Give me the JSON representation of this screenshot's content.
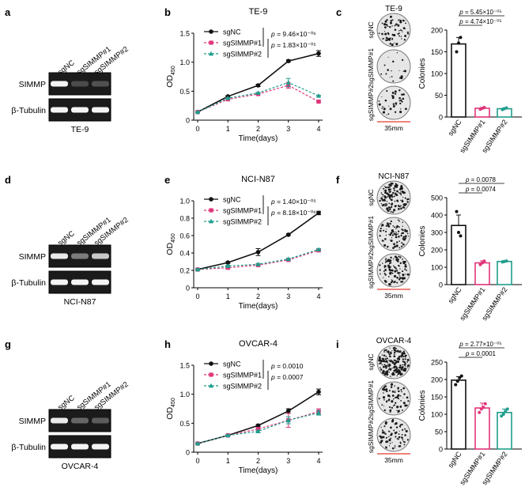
{
  "colors": {
    "sgNC": "#111111",
    "sgSIMMP1": "#e0357a",
    "sgSIMMP2": "#1f9d8c",
    "scale": "#e23b2e",
    "blot_bg": "#1b1b1b",
    "band": "#f4f4f4"
  },
  "common": {
    "xlabel": "Time(days)",
    "ylabel_main": "OD",
    "ylabel_sub": "450",
    "colonies_label": "Colonies",
    "scale_label": "35mm",
    "p_prefix": "p",
    "western_labels": [
      "sgNC",
      "sgSIMMP#1",
      "sgSIMMP#2"
    ],
    "blot_rows": [
      "SIMMP",
      "β-Tubulin"
    ]
  },
  "rows": [
    {
      "cell_line": "TE-9",
      "letters": [
        "a",
        "b",
        "c"
      ],
      "western": {
        "simmp_intensity": [
          1.0,
          0.22,
          0.25
        ],
        "tubulin_intensity": [
          1.0,
          1.0,
          1.0
        ]
      },
      "chart_data": {
        "type": "line",
        "title": "TE-9",
        "xlabel": "Time(days)",
        "ylabel": "OD450",
        "x": [
          0,
          1,
          2,
          3,
          4
        ],
        "ylim": [
          0,
          1.5
        ],
        "yticks": [
          "0",
          "0.5",
          "1.0",
          "1.5"
        ],
        "series": [
          {
            "name": "sgNC",
            "values": [
              0.14,
              0.41,
              0.6,
              1.02,
              1.15
            ],
            "errors": [
              0.01,
              0.01,
              0.02,
              0.02,
              0.05
            ]
          },
          {
            "name": "sgSIMMP#1",
            "values": [
              0.14,
              0.36,
              0.45,
              0.6,
              0.32
            ],
            "errors": [
              0.01,
              0.01,
              0.01,
              0.05,
              0.01
            ]
          },
          {
            "name": "sgSIMMP#2",
            "values": [
              0.14,
              0.38,
              0.47,
              0.65,
              0.42
            ],
            "errors": [
              0.01,
              0.01,
              0.01,
              0.07,
              0.01
            ]
          }
        ],
        "pvalues": [
          "= 9.46×10⁻⁰⁶",
          "= 1.83×10⁻⁰⁵"
        ]
      },
      "colony": {
        "dish_label": "TE-9",
        "dish_labels": [
          "sgNC",
          "sgSIMMP#1",
          "sgSIMMP#2"
        ],
        "densities": [
          70,
          18,
          40
        ],
        "chart_data": {
          "type": "bar",
          "categories": [
            "sgNC",
            "sgSIMMP#1",
            "sgSIMMP#2"
          ],
          "values": [
            168,
            20,
            19
          ],
          "errors": [
            15,
            2,
            2
          ],
          "points": [
            [
              150,
              170,
              183
            ],
            [
              18,
              20,
              22
            ],
            [
              17,
              19,
              21
            ]
          ],
          "ylabel": "Colonies",
          "ylim": [
            0,
            200
          ],
          "yticks": [
            "0",
            "50",
            "100",
            "150",
            "200"
          ],
          "pvalues": [
            "= 4.74×10⁻⁰⁵",
            "= 5.45×10⁻⁰⁵"
          ]
        }
      }
    },
    {
      "cell_line": "NCI-N87",
      "letters": [
        "d",
        "e",
        "f"
      ],
      "western": {
        "simmp_intensity": [
          0.95,
          0.45,
          0.8
        ],
        "tubulin_intensity": [
          1.0,
          1.0,
          1.0
        ]
      },
      "chart_data": {
        "type": "line",
        "title": "NCI-N87",
        "xlabel": "Time(days)",
        "ylabel": "OD450",
        "x": [
          0,
          1,
          2,
          3,
          4
        ],
        "ylim": [
          0,
          1.0
        ],
        "yticks": [
          "0",
          "0.2",
          "0.4",
          "0.6",
          "0.8",
          "1.0"
        ],
        "series": [
          {
            "name": "sgNC",
            "values": [
              0.21,
              0.29,
              0.41,
              0.61,
              0.86
            ],
            "errors": [
              0.01,
              0.01,
              0.04,
              0.01,
              0.02
            ]
          },
          {
            "name": "sgSIMMP#1",
            "values": [
              0.21,
              0.23,
              0.26,
              0.32,
              0.43
            ],
            "errors": [
              0.01,
              0.01,
              0.01,
              0.01,
              0.01
            ]
          },
          {
            "name": "sgSIMMP#2",
            "values": [
              0.21,
              0.25,
              0.27,
              0.33,
              0.44
            ],
            "errors": [
              0.01,
              0.01,
              0.01,
              0.01,
              0.01
            ]
          }
        ],
        "pvalues": [
          "= 1.40×10⁻⁰⁵",
          "= 8.18×10⁻⁰⁶"
        ]
      },
      "colony": {
        "dish_label": "NCI-N87",
        "dish_labels": [
          "sgNC",
          "sgSIMMP#1",
          "sgSIMMP#2"
        ],
        "densities": [
          150,
          90,
          95
        ],
        "chart_data": {
          "type": "bar",
          "categories": [
            "sgNC",
            "sgSIMMP#1",
            "sgSIMMP#2"
          ],
          "values": [
            340,
            125,
            133
          ],
          "errors": [
            60,
            12,
            5
          ],
          "points": [
            [
              420,
              300,
              280
            ],
            [
              115,
              125,
              135
            ],
            [
              130,
              133,
              136
            ]
          ],
          "ylabel": "Colonies",
          "ylim": [
            0,
            500
          ],
          "yticks": [
            "0",
            "100",
            "200",
            "300",
            "400",
            "500"
          ],
          "pvalues": [
            "= 0.0074",
            "= 0.0078"
          ]
        }
      }
    },
    {
      "cell_line": "OVCAR-4",
      "letters": [
        "g",
        "h",
        "i"
      ],
      "western": {
        "simmp_intensity": [
          0.95,
          0.35,
          0.3
        ],
        "tubulin_intensity": [
          1.0,
          1.0,
          1.0
        ]
      },
      "chart_data": {
        "type": "line",
        "title": "OVCAR-4",
        "xlabel": "Time(days)",
        "ylabel": "OD450",
        "x": [
          0,
          1,
          2,
          3,
          4
        ],
        "ylim": [
          0,
          1.5
        ],
        "yticks": [
          "0",
          "0.5",
          "1.0",
          "1.5"
        ],
        "series": [
          {
            "name": "sgNC",
            "values": [
              0.15,
              0.29,
              0.46,
              0.71,
              1.04
            ],
            "errors": [
              0.01,
              0.01,
              0.02,
              0.04,
              0.05
            ]
          },
          {
            "name": "sgSIMMP#1",
            "values": [
              0.15,
              0.29,
              0.4,
              0.55,
              0.7
            ],
            "errors": [
              0.01,
              0.01,
              0.02,
              0.12,
              0.05
            ]
          },
          {
            "name": "sgSIMMP#2",
            "values": [
              0.15,
              0.29,
              0.36,
              0.55,
              0.68
            ],
            "errors": [
              0.01,
              0.01,
              0.02,
              0.06,
              0.04
            ]
          }
        ],
        "pvalues": [
          "= 0.0010",
          "= 0.0007"
        ]
      },
      "colony": {
        "dish_label": "OVCAR-4",
        "dish_labels": [
          "sgNC",
          "sgSIMMP#1",
          "sgSIMMP#2"
        ],
        "densities": [
          200,
          70,
          80
        ],
        "chart_data": {
          "type": "bar",
          "categories": [
            "sgNC",
            "sgSIMMP#1",
            "sgSIMMP#2"
          ],
          "values": [
            198,
            118,
            105
          ],
          "errors": [
            10,
            14,
            10
          ],
          "points": [
            [
              185,
              195,
              205,
              210
            ],
            [
              105,
              115,
              120,
              130
            ],
            [
              95,
              100,
              108,
              115
            ]
          ],
          "ylabel": "Colonies",
          "ylim": [
            0,
            250
          ],
          "yticks": [
            "0",
            "50",
            "100",
            "150",
            "200",
            "250"
          ],
          "pvalues": [
            "= 0.0001",
            "= 2.77×10⁻⁰⁵"
          ]
        }
      }
    }
  ]
}
